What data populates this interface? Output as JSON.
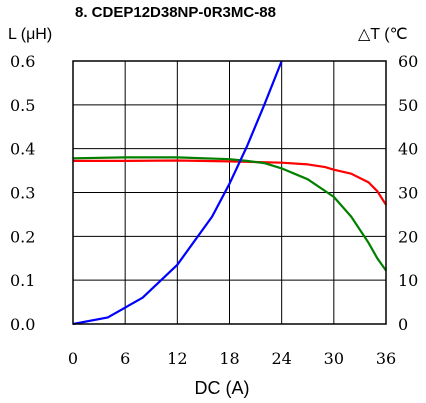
{
  "chart_data": {
    "type": "line",
    "title": "8. CDEP12D38NP-0R3MC-88",
    "xlabel": "DC (A)",
    "ylabel_left": "L (μH)",
    "ylabel_right": "△T (℃",
    "xlim": [
      0,
      36
    ],
    "ylim_left": [
      0,
      0.6
    ],
    "ylim_right": [
      0,
      60
    ],
    "x_ticks": [
      "0",
      "6",
      "12",
      "18",
      "24",
      "30",
      "36"
    ],
    "y_left_ticks": [
      "0.0",
      "0.1",
      "0.2",
      "0.3",
      "0.4",
      "0.5",
      "0.6"
    ],
    "y_right_ticks": [
      "0",
      "10",
      "20",
      "30",
      "40",
      "50",
      "60"
    ],
    "grid": true,
    "legend": "none",
    "series": [
      {
        "color": "#ff0000",
        "axis": "left",
        "x": [
          0,
          6,
          12,
          18,
          24,
          27,
          29,
          30,
          32,
          34,
          35,
          36
        ],
        "y": [
          0.372,
          0.372,
          0.373,
          0.371,
          0.368,
          0.364,
          0.358,
          0.352,
          0.343,
          0.323,
          0.303,
          0.272
        ]
      },
      {
        "color": "#008000",
        "axis": "left",
        "x": [
          0,
          6,
          12,
          18,
          20,
          22,
          24,
          27,
          30,
          32,
          34,
          35,
          36
        ],
        "y": [
          0.378,
          0.38,
          0.38,
          0.376,
          0.372,
          0.367,
          0.355,
          0.33,
          0.29,
          0.245,
          0.185,
          0.15,
          0.122
        ]
      },
      {
        "color": "#0000ff",
        "axis": "right",
        "x": [
          0,
          4,
          8,
          12,
          16,
          18,
          20,
          22,
          24
        ],
        "y": [
          0,
          1.5,
          6,
          13.5,
          24.5,
          32,
          40.5,
          50,
          60
        ]
      }
    ]
  }
}
